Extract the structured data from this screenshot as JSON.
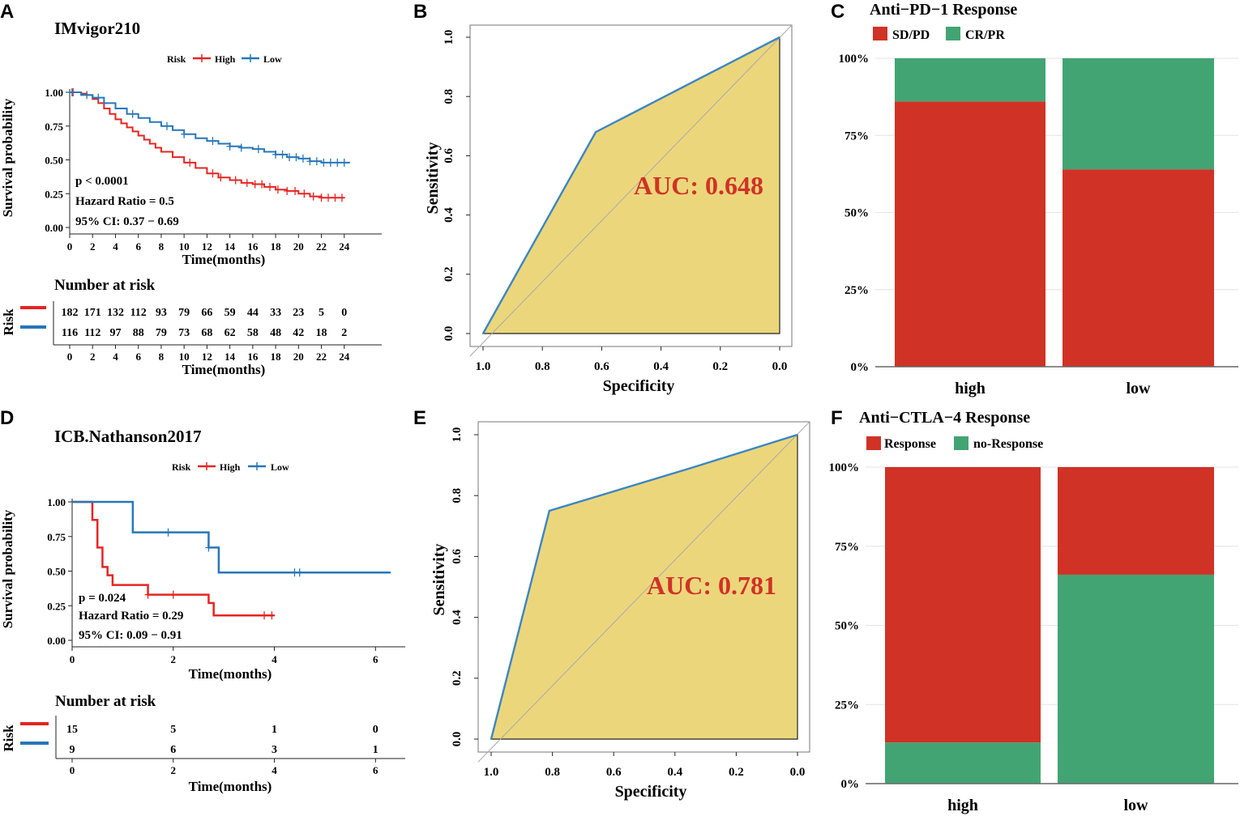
{
  "colors": {
    "high": "#e52521",
    "low": "#2677b8",
    "roc_fill": "#ecd67c",
    "roc_line": "#3b86c3",
    "auc": "#d03226",
    "bar_red": "#d03226",
    "bar_green": "#42a473"
  },
  "panels": {
    "A": {
      "letter": "A",
      "title": "IMvigor210",
      "legend_title": "Risk",
      "legend_high": "High",
      "legend_low": "Low",
      "ylabel": "Survival probability",
      "xlabel": "Time(months)",
      "stat_p": "p < 0.0001",
      "stat_hr": "Hazard Ratio = 0.5",
      "stat_ci": "95% CI: 0.37 − 0.69",
      "risk_title": "Number at risk",
      "risk_ylabel": "Risk",
      "risk_xlabel": "Time(months)"
    },
    "B": {
      "letter": "B",
      "xlabel": "Specificity",
      "ylabel": "Sensitivity",
      "auc_label": "AUC: 0.648"
    },
    "C": {
      "letter": "C",
      "title": "Anti−PD−1 Response",
      "legend_red": "SD/PD",
      "legend_green": "CR/PR"
    },
    "D": {
      "letter": "D",
      "title": "ICB.Nathanson2017",
      "legend_title": "Risk",
      "legend_high": "High",
      "legend_low": "Low",
      "ylabel": "Survival probability",
      "xlabel": "Time(months)",
      "stat_p": "p = 0.024",
      "stat_hr": "Hazard Ratio = 0.29",
      "stat_ci": "95% CI: 0.09 − 0.91",
      "risk_title": "Number at risk",
      "risk_ylabel": "Risk",
      "risk_xlabel": "Time(months)"
    },
    "E": {
      "letter": "E",
      "xlabel": "Specificity",
      "ylabel": "Sensitivity",
      "auc_label": "AUC: 0.781"
    },
    "F": {
      "letter": "F",
      "title": "Anti−CTLA−4 Response",
      "legend_red": "Response",
      "legend_green": "no-Response"
    }
  },
  "chart_data": [
    {
      "id": "A",
      "type": "line",
      "title": "IMvigor210",
      "xlabel": "Time(months)",
      "ylabel": "Survival probability",
      "xlim": [
        0,
        26
      ],
      "ylim": [
        0,
        1
      ],
      "xticks": [
        0,
        2,
        4,
        6,
        8,
        10,
        12,
        14,
        16,
        18,
        20,
        22,
        24
      ],
      "yticks": [
        0,
        0.25,
        0.5,
        0.75,
        1.0
      ],
      "ytick_labels": [
        "0.00",
        "0.25",
        "0.50",
        "0.75",
        "1.00"
      ],
      "series": [
        {
          "name": "High",
          "x": [
            0,
            1,
            1.5,
            2,
            2.5,
            3,
            3.5,
            4,
            4.5,
            5,
            5.5,
            6,
            6.5,
            7,
            7.5,
            8,
            9,
            10,
            11,
            12,
            13,
            14,
            15,
            16,
            17,
            18,
            19,
            20,
            21,
            22,
            23,
            24
          ],
          "y": [
            1.0,
            0.99,
            0.98,
            0.95,
            0.92,
            0.88,
            0.84,
            0.8,
            0.77,
            0.74,
            0.71,
            0.68,
            0.65,
            0.62,
            0.59,
            0.56,
            0.52,
            0.48,
            0.44,
            0.4,
            0.37,
            0.35,
            0.33,
            0.32,
            0.3,
            0.28,
            0.27,
            0.25,
            0.23,
            0.22,
            0.22,
            0.22
          ],
          "censor_x": [
            0.3,
            10.5,
            12.5,
            13.2,
            14.5,
            15.5,
            16.2,
            16.8,
            17.5,
            18.2,
            19,
            19.7,
            20.5,
            21.3,
            22,
            22.6,
            23.2,
            23.8
          ]
        },
        {
          "name": "Low",
          "x": [
            0,
            1,
            2,
            3,
            4,
            5,
            6,
            7,
            8,
            9,
            10,
            11,
            12,
            13,
            14,
            15,
            16,
            17,
            18,
            19,
            20,
            21,
            22,
            23,
            24.5
          ],
          "y": [
            1.0,
            0.98,
            0.96,
            0.92,
            0.88,
            0.84,
            0.81,
            0.78,
            0.75,
            0.72,
            0.69,
            0.66,
            0.64,
            0.62,
            0.6,
            0.59,
            0.58,
            0.56,
            0.54,
            0.52,
            0.51,
            0.49,
            0.48,
            0.48,
            0.48
          ],
          "censor_x": [
            0.2,
            1.5,
            2.5,
            5.5,
            8.5,
            10,
            12.5,
            14,
            15,
            16.5,
            18,
            18.6,
            19.2,
            19.8,
            20.4,
            21,
            21.6,
            22.2,
            22.8,
            23.4,
            24
          ]
        }
      ],
      "risk_table": {
        "times": [
          0,
          2,
          4,
          6,
          8,
          10,
          12,
          14,
          16,
          18,
          20,
          22,
          24
        ],
        "High": [
          182,
          171,
          132,
          112,
          93,
          79,
          66,
          59,
          44,
          33,
          23,
          5,
          0
        ],
        "Low": [
          116,
          112,
          97,
          88,
          79,
          73,
          68,
          62,
          58,
          48,
          42,
          18,
          2
        ]
      }
    },
    {
      "id": "B",
      "type": "line",
      "subtype": "roc",
      "xlabel": "Specificity",
      "ylabel": "Sensitivity",
      "auc": 0.648,
      "xlim": [
        1.0,
        0.0
      ],
      "ylim": [
        0,
        1
      ],
      "xticks": [
        1.0,
        0.8,
        0.6,
        0.4,
        0.2,
        0.0
      ],
      "yticks": [
        0.0,
        0.2,
        0.4,
        0.6,
        0.8,
        1.0
      ],
      "specificity": [
        1.0,
        0.62,
        0.0
      ],
      "sensitivity": [
        0.0,
        0.68,
        1.0
      ]
    },
    {
      "id": "C",
      "type": "bar",
      "subtype": "stacked_percent",
      "title": "Anti−PD−1 Response",
      "categories": [
        "high",
        "low"
      ],
      "yticks": [
        "0%",
        "25%",
        "50%",
        "75%",
        "100%"
      ],
      "series": [
        {
          "name": "SD/PD",
          "values": [
            86,
            64
          ]
        },
        {
          "name": "CR/PR",
          "values": [
            14,
            36
          ]
        }
      ]
    },
    {
      "id": "D",
      "type": "line",
      "title": "ICB.Nathanson2017",
      "xlabel": "Time(months)",
      "ylabel": "Survival probability",
      "xlim": [
        0,
        6.3
      ],
      "ylim": [
        0,
        1
      ],
      "xticks": [
        0,
        2,
        4,
        6
      ],
      "yticks": [
        0,
        0.25,
        0.5,
        0.75,
        1.0
      ],
      "ytick_labels": [
        "0.00",
        "0.25",
        "0.50",
        "0.75",
        "1.00"
      ],
      "series": [
        {
          "name": "High",
          "x": [
            0,
            0.4,
            0.5,
            0.6,
            0.7,
            0.8,
            1.5,
            2.7,
            4.0
          ],
          "y": [
            1.0,
            0.87,
            0.67,
            0.53,
            0.47,
            0.4,
            0.33,
            0.27,
            0.18
          ],
          "steps": [
            [
              0,
              1.0
            ],
            [
              0.4,
              1.0
            ],
            [
              0.4,
              0.87
            ],
            [
              0.5,
              0.87
            ],
            [
              0.5,
              0.67
            ],
            [
              0.6,
              0.67
            ],
            [
              0.6,
              0.53
            ],
            [
              0.7,
              0.53
            ],
            [
              0.7,
              0.47
            ],
            [
              0.8,
              0.47
            ],
            [
              0.8,
              0.4
            ],
            [
              1.5,
              0.4
            ],
            [
              1.5,
              0.33
            ],
            [
              2.7,
              0.33
            ],
            [
              2.7,
              0.27
            ],
            [
              2.8,
              0.27
            ],
            [
              2.8,
              0.18
            ],
            [
              4.0,
              0.18
            ]
          ],
          "censor_x": [
            1.5,
            2.0,
            3.8,
            3.95
          ]
        },
        {
          "name": "Low",
          "x": [
            0,
            1.2,
            2.7,
            2.9,
            6.3
          ],
          "y": [
            1.0,
            0.78,
            0.67,
            0.49,
            0.49
          ],
          "steps": [
            [
              0,
              1.0
            ],
            [
              1.2,
              1.0
            ],
            [
              1.2,
              0.78
            ],
            [
              2.7,
              0.78
            ],
            [
              2.7,
              0.67
            ],
            [
              2.9,
              0.67
            ],
            [
              2.9,
              0.49
            ],
            [
              6.3,
              0.49
            ]
          ],
          "censor_x": [
            1.9,
            2.7,
            4.4,
            4.5
          ]
        }
      ],
      "risk_table": {
        "times": [
          0,
          2,
          4,
          6
        ],
        "High": [
          15,
          5,
          1,
          0
        ],
        "Low": [
          9,
          6,
          3,
          1
        ]
      }
    },
    {
      "id": "E",
      "type": "line",
      "subtype": "roc",
      "xlabel": "Specificity",
      "ylabel": "Sensitivity",
      "auc": 0.781,
      "xlim": [
        1.0,
        0.0
      ],
      "ylim": [
        0,
        1
      ],
      "xticks": [
        1.0,
        0.8,
        0.6,
        0.4,
        0.2,
        0.0
      ],
      "yticks": [
        0.0,
        0.2,
        0.4,
        0.6,
        0.8,
        1.0
      ],
      "specificity": [
        1.0,
        0.81,
        0.35,
        0.0
      ],
      "sensitivity": [
        0.0,
        0.75,
        0.89,
        1.0
      ]
    },
    {
      "id": "F",
      "type": "bar",
      "subtype": "stacked_percent",
      "title": "Anti−CTLA−4 Response",
      "categories": [
        "high",
        "low"
      ],
      "yticks": [
        "0%",
        "25%",
        "50%",
        "75%",
        "100%"
      ],
      "series": [
        {
          "name": "no-Response",
          "values": [
            13,
            66
          ]
        },
        {
          "name": "Response",
          "values": [
            87,
            34
          ]
        }
      ]
    }
  ]
}
